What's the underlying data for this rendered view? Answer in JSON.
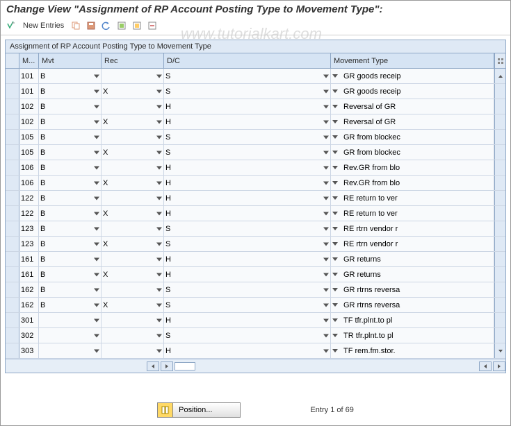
{
  "title": "Change View \"Assignment of RP Account Posting Type to Movement Type\":",
  "toolbar": {
    "new_entries": "New Entries"
  },
  "watermark": "www.tutorialkart.com",
  "grid": {
    "title": "Assignment of RP Account Posting Type to Movement Type",
    "headers": {
      "m": "M...",
      "mvt": "Mvt",
      "rec": "Rec",
      "dc": "D/C",
      "movtype": "Movement Type"
    },
    "rows": [
      {
        "m": "101",
        "mvt": "B",
        "rec": "",
        "dc": "S",
        "movtype": "GR goods receip"
      },
      {
        "m": "101",
        "mvt": "B",
        "rec": "X",
        "dc": "S",
        "movtype": "GR goods receip"
      },
      {
        "m": "102",
        "mvt": "B",
        "rec": "",
        "dc": "H",
        "movtype": "Reversal of GR"
      },
      {
        "m": "102",
        "mvt": "B",
        "rec": "X",
        "dc": "H",
        "movtype": "Reversal of GR"
      },
      {
        "m": "105",
        "mvt": "B",
        "rec": "",
        "dc": "S",
        "movtype": "GR from blockec"
      },
      {
        "m": "105",
        "mvt": "B",
        "rec": "X",
        "dc": "S",
        "movtype": "GR from blockec"
      },
      {
        "m": "106",
        "mvt": "B",
        "rec": "",
        "dc": "H",
        "movtype": "Rev.GR from blo"
      },
      {
        "m": "106",
        "mvt": "B",
        "rec": "X",
        "dc": "H",
        "movtype": "Rev.GR from blo"
      },
      {
        "m": "122",
        "mvt": "B",
        "rec": "",
        "dc": "H",
        "movtype": "RE return to ver"
      },
      {
        "m": "122",
        "mvt": "B",
        "rec": "X",
        "dc": "H",
        "movtype": "RE return to ver"
      },
      {
        "m": "123",
        "mvt": "B",
        "rec": "",
        "dc": "S",
        "movtype": "RE rtrn vendor r"
      },
      {
        "m": "123",
        "mvt": "B",
        "rec": "X",
        "dc": "S",
        "movtype": "RE rtrn vendor r"
      },
      {
        "m": "161",
        "mvt": "B",
        "rec": "",
        "dc": "H",
        "movtype": "GR returns"
      },
      {
        "m": "161",
        "mvt": "B",
        "rec": "X",
        "dc": "H",
        "movtype": "GR returns"
      },
      {
        "m": "162",
        "mvt": "B",
        "rec": "",
        "dc": "S",
        "movtype": "GR rtrns reversa"
      },
      {
        "m": "162",
        "mvt": "B",
        "rec": "X",
        "dc": "S",
        "movtype": "GR rtrns reversa"
      },
      {
        "m": "301",
        "mvt": "",
        "rec": "",
        "dc": "H",
        "movtype": "TF tfr.plnt.to pl"
      },
      {
        "m": "302",
        "mvt": "",
        "rec": "",
        "dc": "S",
        "movtype": "TR tfr.plnt.to pl"
      },
      {
        "m": "303",
        "mvt": "",
        "rec": "",
        "dc": "H",
        "movtype": "TF rem.fm.stor."
      }
    ]
  },
  "footer": {
    "position": "Position...",
    "entry": "Entry 1 of 69"
  },
  "colors": {
    "header_bg": "#d6e4f4",
    "border": "#8ea7c6",
    "cell_bg": "#f8fafc"
  }
}
